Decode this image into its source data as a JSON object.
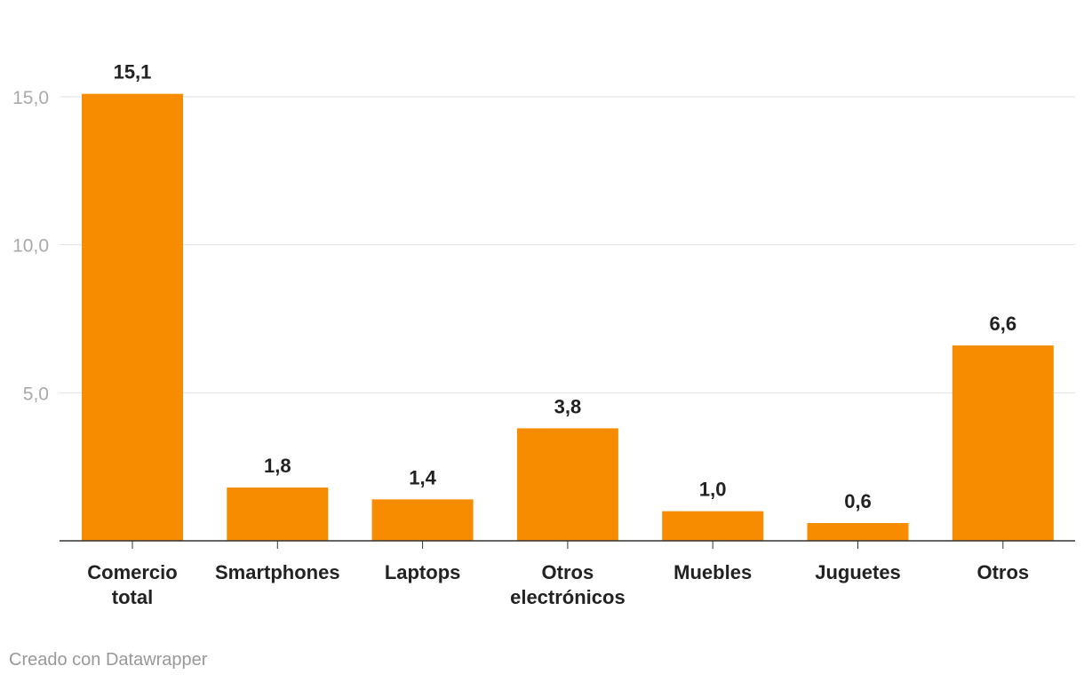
{
  "chart_data": {
    "type": "bar",
    "categories": [
      "Comercio total",
      "Smartphones",
      "Laptops",
      "Otros electrónicos",
      "Muebles",
      "Juguetes",
      "Otros"
    ],
    "category_lines": [
      [
        "Comercio",
        "total"
      ],
      [
        "Smartphones"
      ],
      [
        "Laptops"
      ],
      [
        "Otros",
        "electrónicos"
      ],
      [
        "Muebles"
      ],
      [
        "Juguetes"
      ],
      [
        "Otros"
      ]
    ],
    "values": [
      15.1,
      1.8,
      1.4,
      3.8,
      1.0,
      0.6,
      6.6
    ],
    "value_labels": [
      "15,1",
      "1,8",
      "1,4",
      "3,8",
      "1,0",
      "0,6",
      "6,6"
    ],
    "yticks": [
      5.0,
      10.0,
      15.0
    ],
    "ytick_labels": [
      "5,0",
      "10,0",
      "15,0"
    ],
    "ylim": [
      0,
      15
    ],
    "grid": true,
    "bar_color": "#f78c00",
    "title": "",
    "xlabel": "",
    "ylabel": ""
  },
  "credit": "Creado con Datawrapper"
}
